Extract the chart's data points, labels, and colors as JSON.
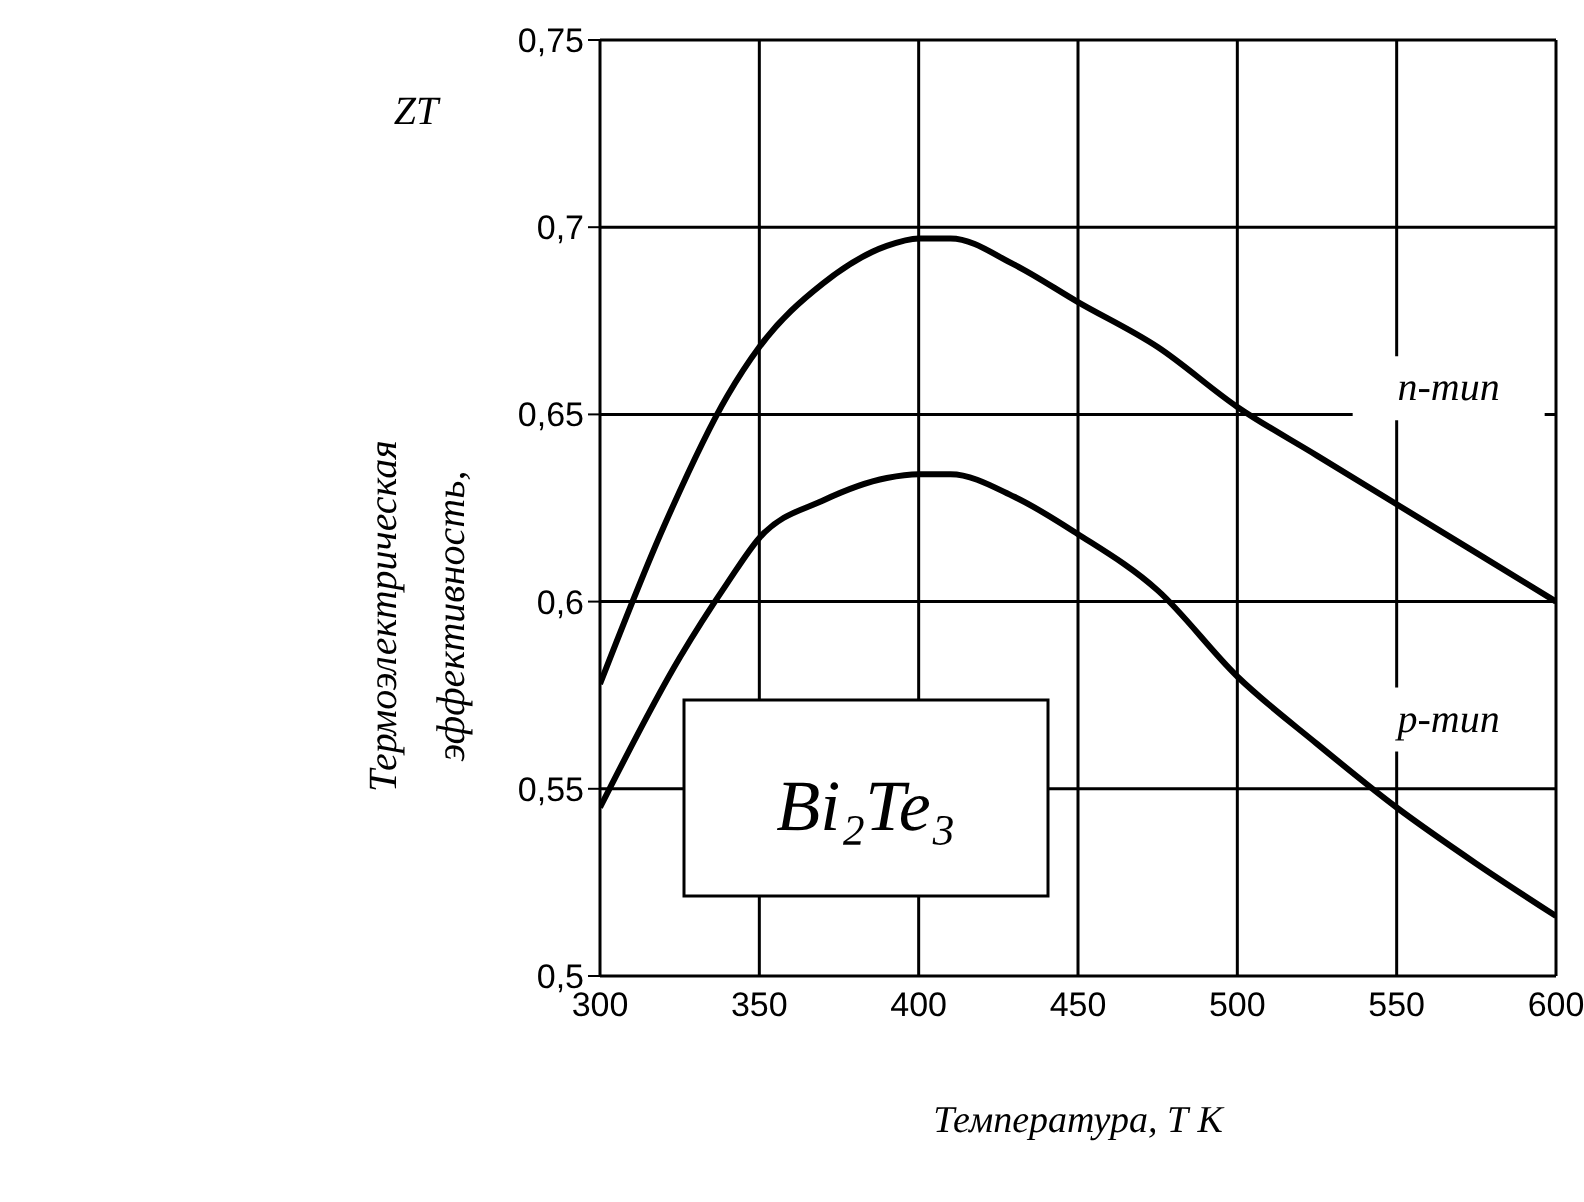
{
  "chart_data": {
    "type": "line",
    "xlabel": "Температура, Т К",
    "ylabel": "Термоэлектрическая эффективность,",
    "annotations": [
      "ZT",
      "Bi₂Te₃"
    ],
    "series": [
      {
        "name": "n-тип",
        "color": "#000000",
        "x": [
          300,
          320,
          340,
          350,
          370,
          390,
          400,
          410,
          430,
          450,
          475,
          500,
          525,
          550,
          575,
          600
        ],
        "values": [
          0.578,
          0.62,
          0.655,
          0.668,
          0.685,
          0.695,
          0.697,
          0.697,
          0.69,
          0.68,
          0.668,
          0.652,
          0.639,
          0.626,
          0.613,
          0.6
        ]
      },
      {
        "name": "p-тип",
        "color": "#000000",
        "x": [
          300,
          325,
          340,
          350,
          370,
          390,
          400,
          410,
          430,
          450,
          475,
          500,
          525,
          550,
          575,
          600
        ],
        "values": [
          0.545,
          0.585,
          0.605,
          0.617,
          0.627,
          0.633,
          0.634,
          0.634,
          0.628,
          0.618,
          0.603,
          0.58,
          0.562,
          0.545,
          0.53,
          0.516
        ]
      }
    ],
    "xlim": [
      300,
      600
    ],
    "xticks": [
      300,
      350,
      400,
      450,
      500,
      550,
      600
    ],
    "ylim": [
      0.5,
      0.75
    ],
    "yticks": [
      {
        "value": 0.5,
        "label": "0,5"
      },
      {
        "value": 0.55,
        "label": "0,55"
      },
      {
        "value": 0.6,
        "label": "0,6"
      },
      {
        "value": 0.65,
        "label": "0,65"
      },
      {
        "value": 0.7,
        "label": "0,7"
      },
      {
        "value": 0.75,
        "label": "0,75"
      }
    ],
    "grid": true,
    "legend": false,
    "marker": "none",
    "line_style": "solid"
  }
}
